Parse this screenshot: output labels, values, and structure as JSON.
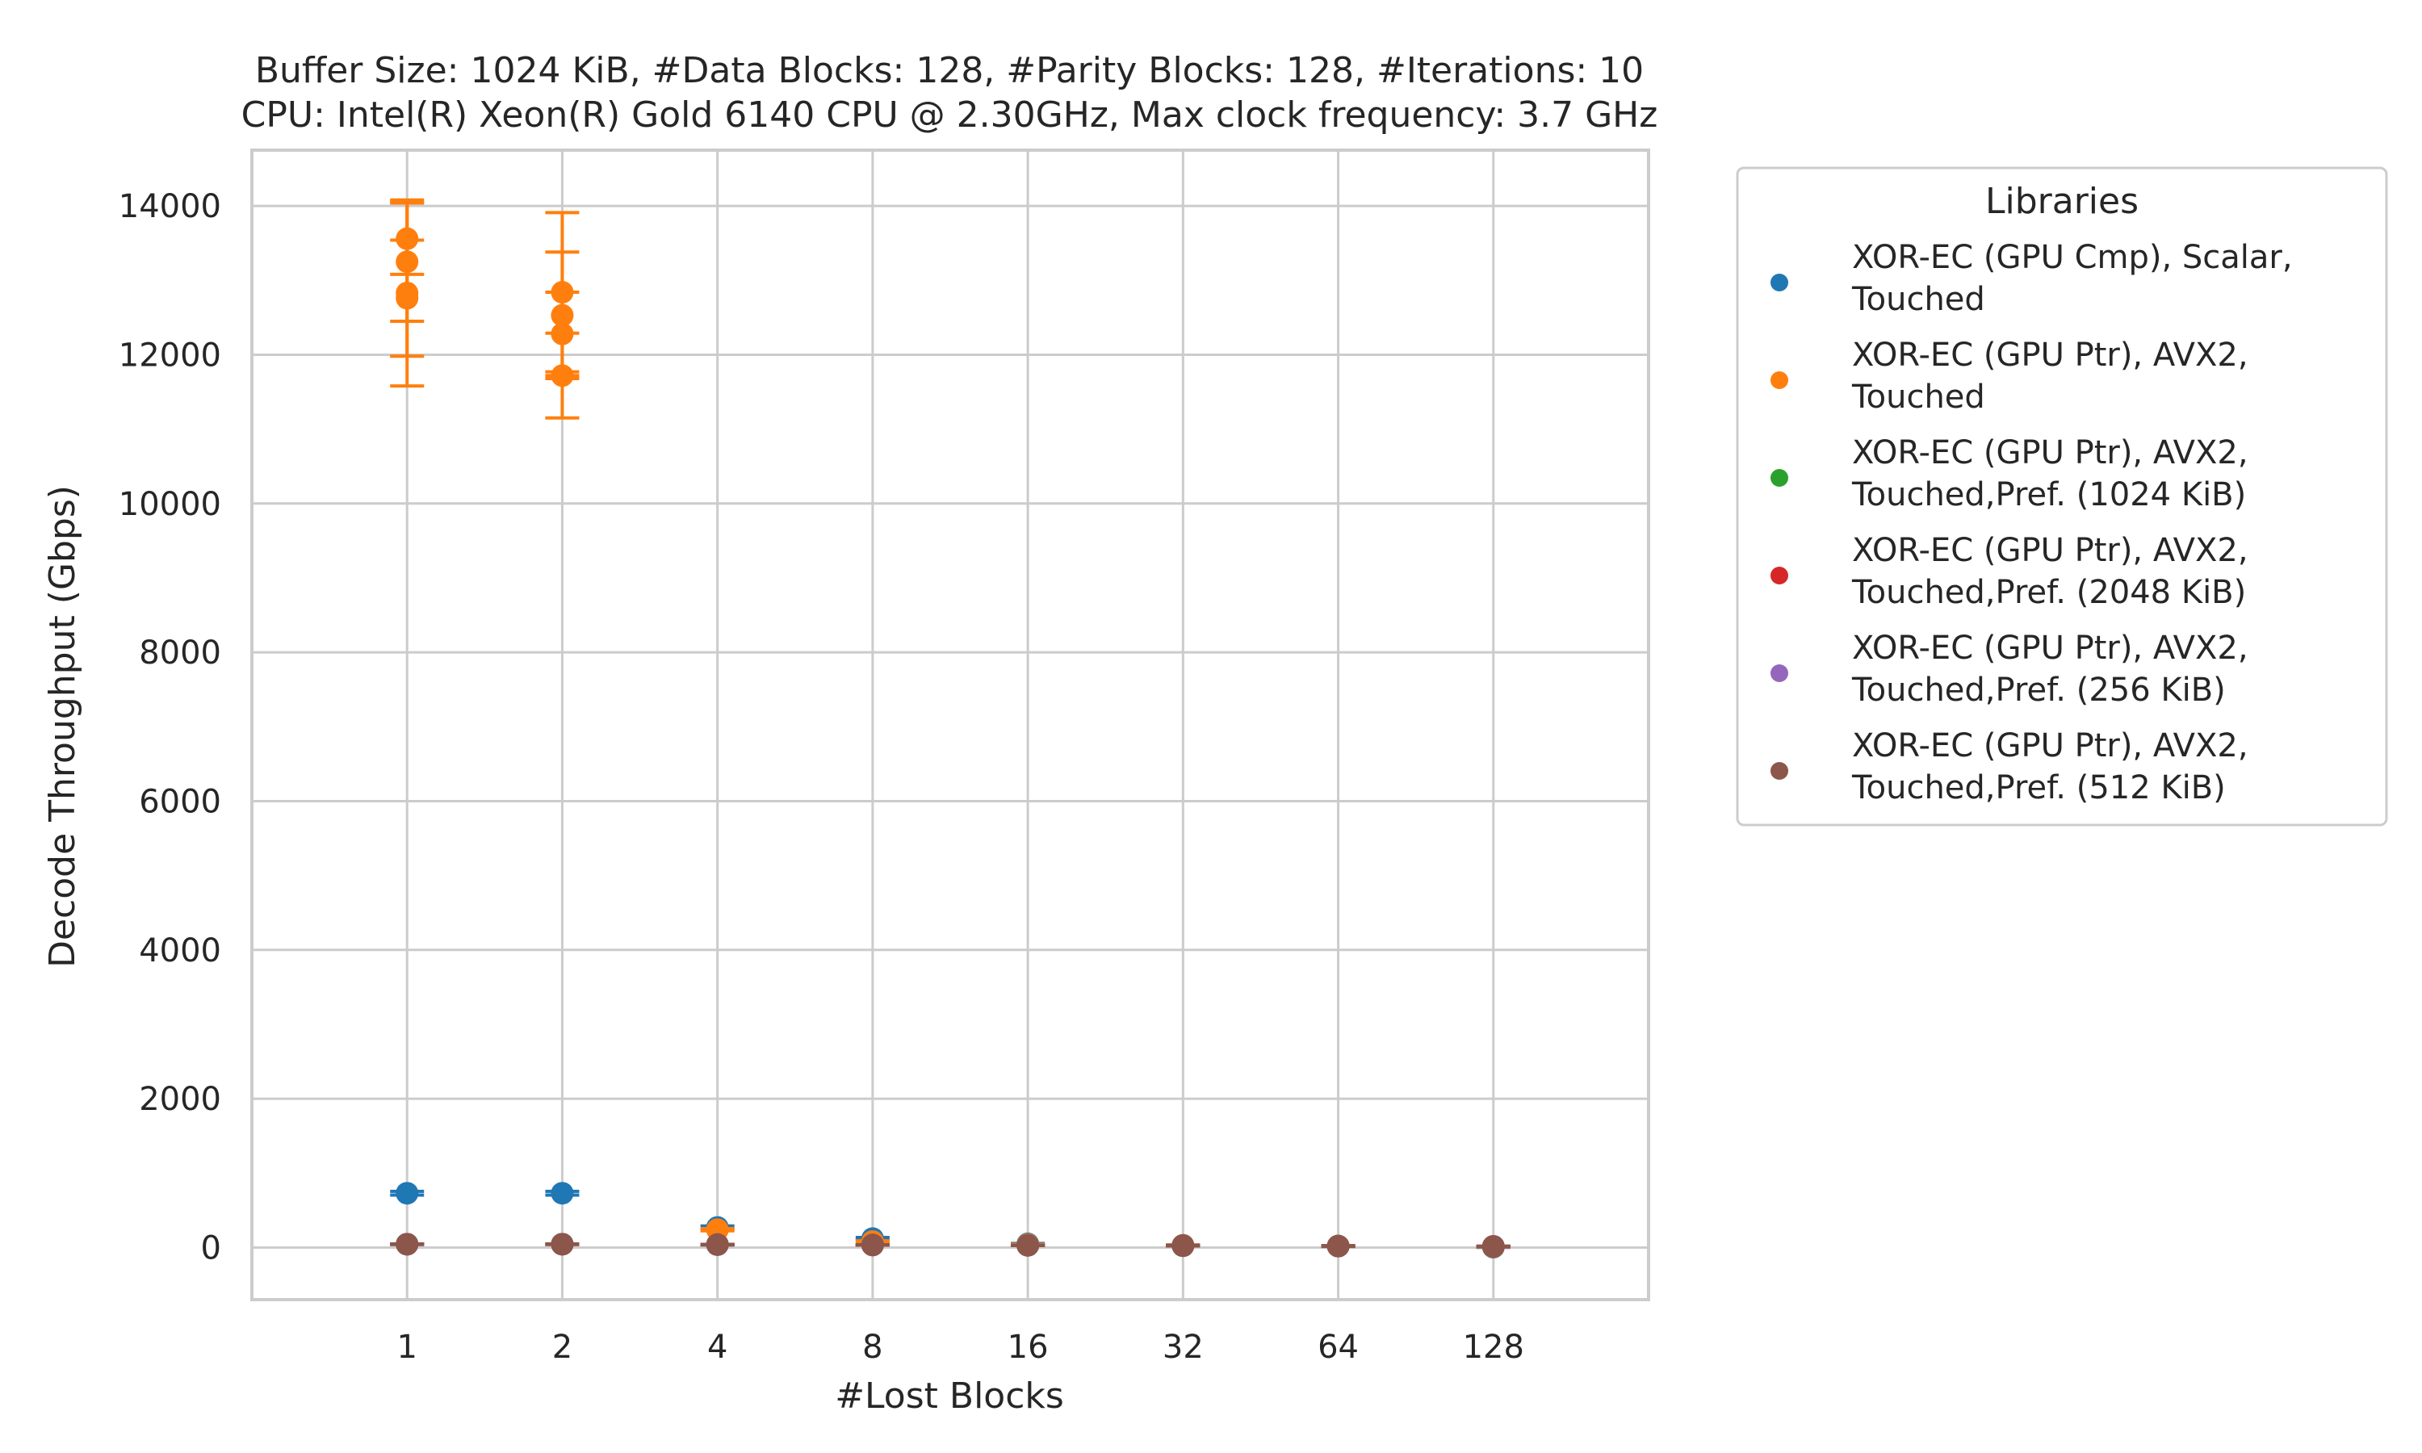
{
  "chart_data": {
    "type": "scatter",
    "title_lines": [
      "Buffer Size: 1024 KiB, #Data Blocks: 128, #Parity Blocks: 128, #Iterations: 10",
      "CPU: Intel(R) Xeon(R) Gold 6140 CPU @ 2.30GHz, Max clock frequency: 3.7 GHz"
    ],
    "xlabel": "#Lost Blocks",
    "ylabel": "Decode Throughput (Gbps)",
    "categories": [
      "1",
      "2",
      "4",
      "8",
      "16",
      "32",
      "64",
      "128"
    ],
    "ylim": [
      -700,
      14750
    ],
    "yticks": [
      0,
      2000,
      4000,
      6000,
      8000,
      10000,
      12000,
      14000
    ],
    "grid": true,
    "legend": {
      "title": "Libraries",
      "placement": "outside-right"
    },
    "series": [
      {
        "name_lines": [
          "XOR-EC (GPU Cmp), Scalar,",
          "Touched"
        ],
        "color": "#1f77b4",
        "points": [
          {
            "x": "1",
            "y": 730,
            "err": 25
          },
          {
            "x": "2",
            "y": 730,
            "err": 25
          },
          {
            "x": "4",
            "y": 270,
            "err": 20
          },
          {
            "x": "8",
            "y": 120,
            "err": 15
          },
          {
            "x": "16",
            "y": 50,
            "err": 5
          },
          {
            "x": "32",
            "y": 30,
            "err": 5
          },
          {
            "x": "64",
            "y": 20,
            "err": 5
          },
          {
            "x": "128",
            "y": 5,
            "err": 3
          }
        ]
      },
      {
        "name_lines": [
          "XOR-EC (GPU Ptr), AVX2,",
          "Touched"
        ],
        "color": "#ff7f0e",
        "points": [
          {
            "x": "1",
            "y": 13560,
            "err": 480
          },
          {
            "x": "1",
            "y": 13250,
            "err": 800
          },
          {
            "x": "1",
            "y": 12830,
            "err": 1250
          },
          {
            "x": "1",
            "y": 12760,
            "err": 780
          },
          {
            "x": "2",
            "y": 12840,
            "err": 1070
          },
          {
            "x": "2",
            "y": 12530,
            "err": 850
          },
          {
            "x": "2",
            "y": 12280,
            "err": 560
          },
          {
            "x": "2",
            "y": 11720,
            "err": 570
          },
          {
            "x": "4",
            "y": 240,
            "err": 15
          },
          {
            "x": "8",
            "y": 80,
            "err": 10
          },
          {
            "x": "16",
            "y": 40,
            "err": 5
          },
          {
            "x": "32",
            "y": 30,
            "err": 5
          },
          {
            "x": "64",
            "y": 20,
            "err": 5
          },
          {
            "x": "128",
            "y": 10,
            "err": 3
          }
        ]
      },
      {
        "name_lines": [
          "XOR-EC (GPU Ptr), AVX2,",
          "Touched,Pref. (1024 KiB)"
        ],
        "color": "#2ca02c",
        "points": [
          {
            "x": "1",
            "y": 45,
            "err": 3
          },
          {
            "x": "2",
            "y": 45,
            "err": 3
          },
          {
            "x": "4",
            "y": 40,
            "err": 3
          },
          {
            "x": "8",
            "y": 35,
            "err": 3
          },
          {
            "x": "16",
            "y": 30,
            "err": 3
          },
          {
            "x": "32",
            "y": 25,
            "err": 3
          },
          {
            "x": "64",
            "y": 20,
            "err": 3
          },
          {
            "x": "128",
            "y": 15,
            "err": 3
          }
        ]
      },
      {
        "name_lines": [
          "XOR-EC (GPU Ptr), AVX2,",
          "Touched,Pref. (2048 KiB)"
        ],
        "color": "#d62728",
        "points": [
          {
            "x": "1",
            "y": 45,
            "err": 3
          },
          {
            "x": "2",
            "y": 45,
            "err": 3
          },
          {
            "x": "4",
            "y": 40,
            "err": 3
          },
          {
            "x": "8",
            "y": 35,
            "err": 3
          },
          {
            "x": "16",
            "y": 30,
            "err": 3
          },
          {
            "x": "32",
            "y": 25,
            "err": 3
          },
          {
            "x": "64",
            "y": 20,
            "err": 3
          },
          {
            "x": "128",
            "y": 15,
            "err": 3
          }
        ]
      },
      {
        "name_lines": [
          "XOR-EC (GPU Ptr), AVX2,",
          "Touched,Pref. (256 KiB)"
        ],
        "color": "#9467bd",
        "points": [
          {
            "x": "1",
            "y": 45,
            "err": 3
          },
          {
            "x": "2",
            "y": 45,
            "err": 3
          },
          {
            "x": "4",
            "y": 40,
            "err": 3
          },
          {
            "x": "8",
            "y": 35,
            "err": 3
          },
          {
            "x": "16",
            "y": 30,
            "err": 3
          },
          {
            "x": "32",
            "y": 25,
            "err": 3
          },
          {
            "x": "64",
            "y": 20,
            "err": 3
          },
          {
            "x": "128",
            "y": 15,
            "err": 3
          }
        ]
      },
      {
        "name_lines": [
          "XOR-EC (GPU Ptr), AVX2,",
          "Touched,Pref. (512 KiB)"
        ],
        "color": "#8c564b",
        "points": [
          {
            "x": "1",
            "y": 45,
            "err": 3
          },
          {
            "x": "2",
            "y": 45,
            "err": 3
          },
          {
            "x": "4",
            "y": 40,
            "err": 3
          },
          {
            "x": "8",
            "y": 35,
            "err": 3
          },
          {
            "x": "16",
            "y": 30,
            "err": 3
          },
          {
            "x": "32",
            "y": 25,
            "err": 3
          },
          {
            "x": "64",
            "y": 20,
            "err": 3
          },
          {
            "x": "128",
            "y": 15,
            "err": 3
          }
        ]
      }
    ]
  }
}
